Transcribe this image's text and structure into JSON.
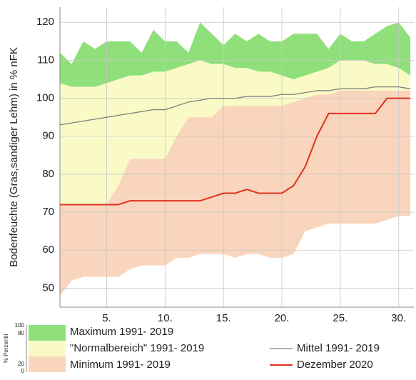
{
  "chart_data": {
    "type": "band-line",
    "y_label": "Bodenfeuchte (Gras,sandiger Lehm) in % nFK",
    "x": [
      1,
      2,
      3,
      4,
      5,
      6,
      7,
      8,
      9,
      10,
      11,
      12,
      13,
      14,
      15,
      16,
      17,
      18,
      19,
      20,
      21,
      22,
      23,
      24,
      25,
      26,
      27,
      28,
      29,
      30,
      31
    ],
    "xlim": [
      1,
      31.3
    ],
    "xticks": [
      {
        "value": 5,
        "label": "5."
      },
      {
        "value": 10,
        "label": "10."
      },
      {
        "value": 15,
        "label": "15."
      },
      {
        "value": 20,
        "label": "20."
      },
      {
        "value": 25,
        "label": "25."
      },
      {
        "value": 30,
        "label": "30."
      }
    ],
    "ylim": [
      45,
      124
    ],
    "yticks": [
      50,
      60,
      70,
      80,
      90,
      100,
      110,
      120
    ],
    "grid": true,
    "series": [
      {
        "name": "Maximum 1991- 2019",
        "kind": "band",
        "color": "#8fe07a",
        "values": [
          112,
          109,
          115,
          113,
          115,
          115,
          115,
          112,
          118,
          115,
          115,
          112,
          120,
          117,
          114,
          117,
          115,
          117,
          115,
          115,
          117,
          117,
          117,
          113,
          117,
          115,
          115,
          117,
          119,
          120,
          116
        ]
      },
      {
        "name": "\"Normalbereich\" 1991- 2019",
        "kind": "band",
        "color": "#fafac6",
        "values": [
          104,
          103,
          103,
          103,
          104,
          105,
          106,
          106,
          107,
          107,
          108,
          109,
          110,
          109,
          109,
          108,
          108,
          107,
          107,
          106,
          105,
          106,
          107,
          108,
          110,
          110,
          110,
          109,
          109,
          108,
          106
        ],
        "lower": [
          72,
          72,
          72,
          72,
          72,
          77,
          84,
          84,
          84,
          84,
          90,
          95,
          95,
          95,
          98,
          98,
          98,
          98,
          98,
          98,
          99,
          100,
          101,
          101,
          102,
          102,
          102,
          102,
          102,
          102,
          102
        ]
      },
      {
        "name": "Minimum 1991- 2019",
        "kind": "band",
        "color": "#f8d5bc",
        "values": [
          48,
          52,
          53,
          53,
          53,
          53,
          55,
          56,
          56,
          56,
          58,
          58,
          59,
          59,
          59,
          58,
          59,
          59,
          58,
          58,
          59,
          65,
          66,
          67,
          67,
          67,
          67,
          67,
          68,
          69,
          69
        ]
      },
      {
        "name": "Mittel 1991- 2019",
        "kind": "line",
        "color": "#808080",
        "values": [
          93,
          93.5,
          94,
          94.5,
          95,
          95.5,
          96,
          96.5,
          97,
          97,
          98,
          99,
          99.5,
          100,
          100,
          100,
          100.5,
          100.5,
          100.5,
          101,
          101,
          101.5,
          102,
          102,
          102.5,
          102.5,
          102.5,
          103,
          103,
          103,
          102.5
        ]
      },
      {
        "name": "Dezember 2020",
        "kind": "line",
        "color": "#e0321e",
        "values": [
          72,
          72,
          72,
          72,
          72,
          72,
          73,
          73,
          73,
          73,
          73,
          73,
          73,
          74,
          75,
          75,
          76,
          75,
          75,
          75,
          77,
          82,
          90,
          96,
          96,
          96,
          96,
          96,
          100,
          100,
          100
        ]
      }
    ],
    "legend_scale": {
      "label": "% Perzentil",
      "ticks": [
        100,
        80,
        20,
        0
      ]
    }
  }
}
